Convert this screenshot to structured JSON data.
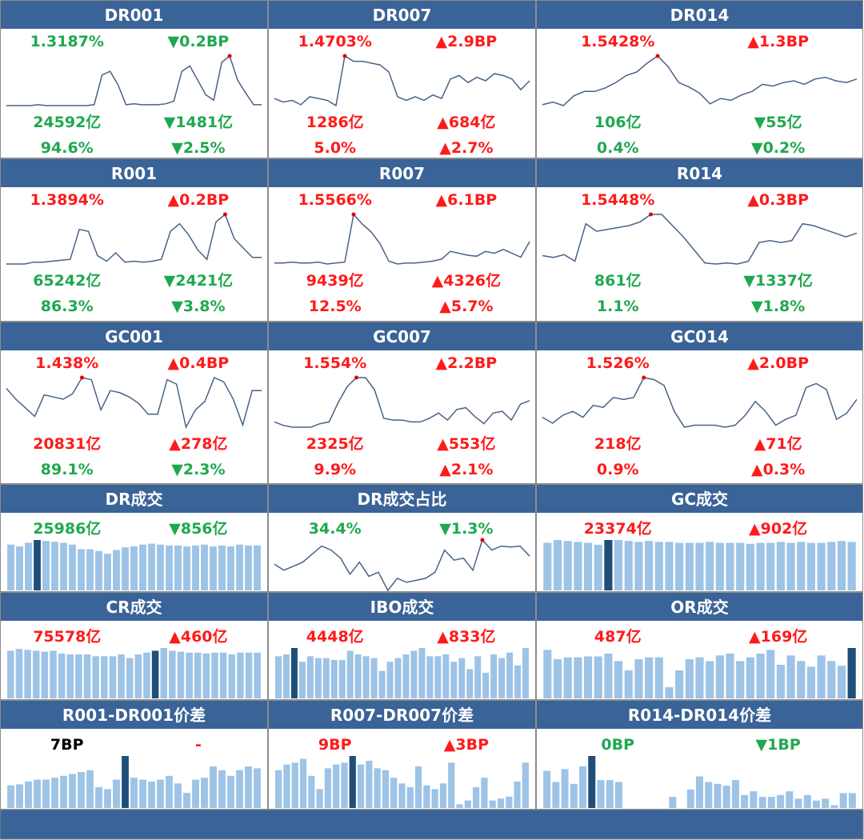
{
  "style": {
    "header": "#3a6397",
    "bar": "#9dc3e6",
    "bar_highlight": "#1f4e79",
    "line": "#4a6286",
    "marker": "#e00000",
    "border": "#8c8c8c"
  },
  "panels": [
    {
      "title": "DR001",
      "kind": "line",
      "values": [
        2,
        2,
        2,
        2,
        3,
        2,
        2,
        2,
        2,
        2,
        2,
        3,
        36,
        40,
        25,
        3,
        4,
        3,
        3,
        3,
        4,
        7,
        40,
        46,
        30,
        14,
        8,
        50,
        57,
        30,
        16,
        3,
        3
      ],
      "rows": [
        {
          "left": "1.3187%",
          "left_color": "#1fa84f",
          "right": "▼0.2BP",
          "right_color": "#1fa84f"
        },
        {
          "left": "24592亿",
          "left_color": "#1fa84f",
          "right": "▼1481亿",
          "right_color": "#1fa84f"
        },
        {
          "left": "94.6%",
          "left_color": "#1fa84f",
          "right": "▼2.5%",
          "right_color": "#1fa84f"
        }
      ]
    },
    {
      "title": "DR007",
      "kind": "line",
      "values": [
        10,
        6,
        8,
        3,
        12,
        10,
        8,
        2,
        58,
        52,
        52,
        50,
        48,
        40,
        12,
        8,
        12,
        8,
        14,
        10,
        32,
        36,
        28,
        34,
        30,
        38,
        36,
        32,
        20,
        30
      ],
      "rows": [
        {
          "left": "1.4703%",
          "left_color": "#ff1a1a",
          "right": "▲2.9BP",
          "right_color": "#ff1a1a"
        },
        {
          "left": "1286亿",
          "left_color": "#ff1a1a",
          "right": "▲684亿",
          "right_color": "#ff1a1a"
        },
        {
          "left": "5.0%",
          "left_color": "#ff1a1a",
          "right": "▲2.7%",
          "right_color": "#ff1a1a"
        }
      ]
    },
    {
      "title": "DR014",
      "kind": "line",
      "values": [
        5,
        8,
        4,
        15,
        20,
        20,
        24,
        30,
        38,
        42,
        52,
        60,
        48,
        30,
        25,
        18,
        6,
        12,
        10,
        16,
        20,
        28,
        26,
        30,
        32,
        28,
        34,
        36,
        32,
        30,
        34
      ],
      "rows": [
        {
          "left": "1.5428%",
          "left_color": "#ff1a1a",
          "right": "▲1.3BP",
          "right_color": "#ff1a1a"
        },
        {
          "left": "106亿",
          "left_color": "#1fa84f",
          "right": "▼55亿",
          "right_color": "#1fa84f"
        },
        {
          "left": "0.4%",
          "left_color": "#1fa84f",
          "right": "▼0.2%",
          "right_color": "#1fa84f"
        }
      ]
    },
    {
      "title": "R001",
      "kind": "line",
      "values": [
        3,
        3,
        3,
        5,
        5,
        6,
        7,
        8,
        40,
        38,
        12,
        6,
        15,
        5,
        6,
        5,
        6,
        8,
        38,
        46,
        34,
        18,
        8,
        48,
        56,
        30,
        20,
        10,
        10
      ],
      "rows": [
        {
          "left": "1.3894%",
          "left_color": "#ff1a1a",
          "right": "▲0.2BP",
          "right_color": "#ff1a1a"
        },
        {
          "left": "65242亿",
          "left_color": "#1fa84f",
          "right": "▼2421亿",
          "right_color": "#1fa84f"
        },
        {
          "left": "86.3%",
          "left_color": "#1fa84f",
          "right": "▼3.8%",
          "right_color": "#1fa84f"
        }
      ]
    },
    {
      "title": "R007",
      "kind": "line",
      "values": [
        8,
        8,
        9,
        8,
        8,
        9,
        7,
        8,
        9,
        58,
        48,
        40,
        28,
        10,
        7,
        8,
        8,
        9,
        10,
        12,
        20,
        18,
        16,
        15,
        20,
        18,
        22,
        18,
        14,
        30
      ],
      "rows": [
        {
          "left": "1.5566%",
          "left_color": "#ff1a1a",
          "right": "▲6.1BP",
          "right_color": "#ff1a1a"
        },
        {
          "left": "9439亿",
          "left_color": "#ff1a1a",
          "right": "▲4326亿",
          "right_color": "#ff1a1a"
        },
        {
          "left": "12.5%",
          "left_color": "#ff1a1a",
          "right": "▲5.7%",
          "right_color": "#ff1a1a"
        }
      ]
    },
    {
      "title": "R014",
      "kind": "line",
      "values": [
        14,
        12,
        15,
        8,
        48,
        40,
        42,
        44,
        46,
        50,
        58,
        58,
        46,
        34,
        20,
        6,
        5,
        6,
        5,
        8,
        28,
        30,
        28,
        30,
        48,
        46,
        42,
        38,
        34,
        38
      ],
      "rows": [
        {
          "left": "1.5448%",
          "left_color": "#ff1a1a",
          "right": "▲0.3BP",
          "right_color": "#ff1a1a"
        },
        {
          "left": "861亿",
          "left_color": "#1fa84f",
          "right": "▼1337亿",
          "right_color": "#1fa84f"
        },
        {
          "left": "1.1%",
          "left_color": "#1fa84f",
          "right": "▼1.8%",
          "right_color": "#1fa84f"
        }
      ]
    },
    {
      "title": "GC001",
      "kind": "line",
      "values": [
        40,
        30,
        22,
        14,
        34,
        32,
        30,
        35,
        50,
        48,
        20,
        38,
        36,
        32,
        26,
        16,
        16,
        48,
        44,
        4,
        20,
        28,
        50,
        46,
        30,
        6,
        38,
        38
      ],
      "rows": [
        {
          "left": "1.438%",
          "left_color": "#ff1a1a",
          "right": "▲0.4BP",
          "right_color": "#ff1a1a"
        },
        {
          "left": "20831亿",
          "left_color": "#ff1a1a",
          "right": "▲278亿",
          "right_color": "#ff1a1a"
        },
        {
          "left": "89.1%",
          "left_color": "#1fa84f",
          "right": "▼2.3%",
          "right_color": "#1fa84f"
        }
      ]
    },
    {
      "title": "GC007",
      "kind": "line",
      "values": [
        10,
        6,
        4,
        4,
        4,
        8,
        10,
        32,
        50,
        60,
        60,
        46,
        14,
        12,
        12,
        10,
        10,
        14,
        20,
        12,
        24,
        26,
        16,
        8,
        20,
        22,
        12,
        30,
        34
      ],
      "rows": [
        {
          "left": "1.554%",
          "left_color": "#ff1a1a",
          "right": "▲2.2BP",
          "right_color": "#ff1a1a"
        },
        {
          "left": "2325亿",
          "left_color": "#ff1a1a",
          "right": "▲553亿",
          "right_color": "#ff1a1a"
        },
        {
          "left": "9.9%",
          "left_color": "#ff1a1a",
          "right": "▲2.1%",
          "right_color": "#ff1a1a"
        }
      ]
    },
    {
      "title": "GC014",
      "kind": "line",
      "values": [
        18,
        12,
        20,
        24,
        18,
        30,
        28,
        38,
        36,
        38,
        58,
        56,
        50,
        24,
        8,
        10,
        10,
        10,
        8,
        10,
        20,
        34,
        24,
        10,
        16,
        20,
        48,
        52,
        46,
        16,
        22,
        36
      ],
      "rows": [
        {
          "left": "1.526%",
          "left_color": "#ff1a1a",
          "right": "▲2.0BP",
          "right_color": "#ff1a1a"
        },
        {
          "left": "218亿",
          "left_color": "#ff1a1a",
          "right": "▲71亿",
          "right_color": "#ff1a1a"
        },
        {
          "left": "0.9%",
          "left_color": "#ff1a1a",
          "right": "▲0.3%",
          "right_color": "#ff1a1a"
        }
      ]
    },
    {
      "title": "DR成交",
      "kind": "bar",
      "highlight": 3,
      "values": [
        50,
        48,
        52,
        55,
        54,
        53,
        52,
        50,
        45,
        45,
        43,
        40,
        44,
        47,
        48,
        50,
        51,
        50,
        49,
        49,
        48,
        49,
        50,
        48,
        49,
        48,
        50,
        49,
        49
      ],
      "rows": [
        {
          "left": "25986亿",
          "left_color": "#1fa84f",
          "right": "▼856亿",
          "right_color": "#1fa84f"
        }
      ]
    },
    {
      "title": "DR成交占比",
      "kind": "line",
      "values": [
        28,
        22,
        26,
        30,
        38,
        46,
        42,
        34,
        18,
        30,
        16,
        20,
        2,
        14,
        10,
        12,
        14,
        20,
        42,
        32,
        34,
        22,
        52,
        42,
        46,
        45,
        46,
        36
      ],
      "rows": [
        {
          "left": "34.4%",
          "left_color": "#1fa84f",
          "right": "▼1.3%",
          "right_color": "#1fa84f"
        }
      ]
    },
    {
      "title": "GC成交",
      "kind": "bar",
      "highlight": 6,
      "values": [
        50,
        53,
        52,
        51,
        50,
        48,
        53,
        53,
        52,
        51,
        52,
        51,
        51,
        50,
        50,
        50,
        51,
        50,
        50,
        50,
        49,
        50,
        50,
        51,
        50,
        51,
        50,
        50,
        51,
        52,
        51
      ],
      "rows": [
        {
          "left": "23374亿",
          "left_color": "#ff1a1a",
          "right": "▲902亿",
          "right_color": "#ff1a1a"
        }
      ]
    },
    {
      "title": "CR成交",
      "kind": "bar",
      "highlight": 17,
      "values": [
        52,
        54,
        53,
        52,
        51,
        52,
        49,
        48,
        48,
        48,
        46,
        46,
        46,
        48,
        44,
        48,
        50,
        52,
        55,
        52,
        51,
        50,
        50,
        49,
        50,
        50,
        48,
        50,
        50,
        50
      ],
      "rows": [
        {
          "left": "75578亿",
          "left_color": "#ff1a1a",
          "right": "▲460亿",
          "right_color": "#ff1a1a"
        }
      ]
    },
    {
      "title": "IBO成交",
      "kind": "bar",
      "highlight": 2,
      "values": [
        46,
        48,
        55,
        40,
        46,
        44,
        44,
        42,
        42,
        52,
        48,
        46,
        44,
        30,
        40,
        44,
        48,
        52,
        55,
        46,
        46,
        48,
        40,
        44,
        32,
        46,
        28,
        48,
        44,
        50,
        36,
        55
      ],
      "rows": [
        {
          "left": "4448亿",
          "left_color": "#ff1a1a",
          "right": "▲833亿",
          "right_color": "#ff1a1a"
        }
      ]
    },
    {
      "title": "OR成交",
      "kind": "bar",
      "highlight": 30,
      "values": [
        52,
        42,
        44,
        44,
        45,
        45,
        48,
        40,
        30,
        42,
        44,
        44,
        12,
        30,
        42,
        44,
        40,
        46,
        48,
        40,
        44,
        48,
        52,
        36,
        46,
        40,
        34,
        46,
        40,
        35,
        54
      ],
      "rows": [
        {
          "left": "487亿",
          "left_color": "#ff1a1a",
          "right": "▲169亿",
          "right_color": "#ff1a1a"
        }
      ]
    },
    {
      "title": "R001-DR001价差",
      "kind": "bar",
      "highlight": 13,
      "values": [
        24,
        25,
        28,
        30,
        30,
        32,
        34,
        36,
        38,
        40,
        22,
        20,
        30,
        55,
        32,
        30,
        28,
        30,
        34,
        26,
        16,
        30,
        32,
        44,
        40,
        34,
        40,
        44,
        42
      ],
      "rows": [
        {
          "left": "7BP",
          "left_color": "#000000",
          "right": "-",
          "right_color": "#ff1a1a"
        }
      ]
    },
    {
      "title": "R007-DR007价差",
      "kind": "bar",
      "highlight": 9,
      "values": [
        40,
        46,
        48,
        52,
        34,
        20,
        42,
        46,
        48,
        55,
        46,
        50,
        42,
        40,
        32,
        26,
        22,
        44,
        24,
        20,
        26,
        48,
        4,
        8,
        22,
        32,
        8,
        10,
        12,
        28,
        48
      ],
      "rows": [
        {
          "left": "9BP",
          "left_color": "#ff1a1a",
          "right": "▲3BP",
          "right_color": "#ff1a1a"
        }
      ]
    },
    {
      "title": "R014-DR014价差",
      "kind": "bar",
      "highlight": 5,
      "values": [
        40,
        28,
        42,
        26,
        45,
        56,
        30,
        30,
        28,
        0,
        0,
        0,
        0,
        0,
        12,
        0,
        20,
        34,
        28,
        26,
        24,
        30,
        14,
        18,
        12,
        12,
        14,
        18,
        10,
        14,
        8,
        10,
        3,
        16,
        16
      ],
      "rows": [
        {
          "left": "0BP",
          "left_color": "#1fa84f",
          "right": "▼1BP",
          "right_color": "#1fa84f"
        }
      ]
    }
  ]
}
